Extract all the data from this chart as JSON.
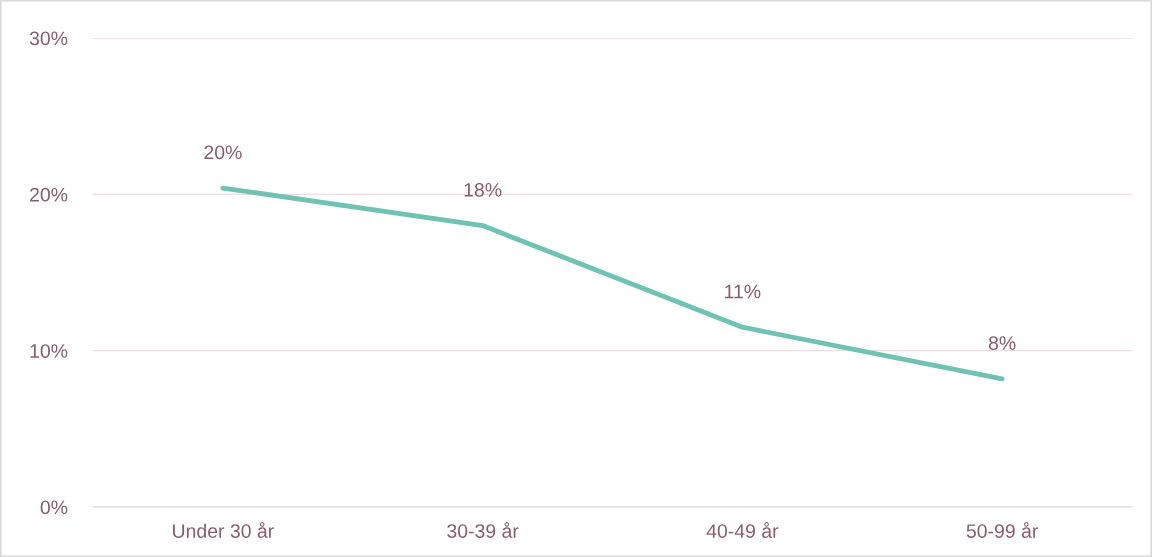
{
  "chart_data": {
    "type": "line",
    "categories": [
      "Under 30 år",
      "30-39 år",
      "40-49 år",
      "50-99 år"
    ],
    "series": [
      {
        "color": "#6fc3b2",
        "values": [
          20.4,
          18.0,
          11.5,
          8.2
        ],
        "value_labels": [
          "20%",
          "18%",
          "11%",
          "8%"
        ]
      }
    ],
    "ylim": [
      0,
      30
    ],
    "yticks": [
      {
        "value": 0,
        "label": "0%"
      },
      {
        "value": 10,
        "label": "10%"
      },
      {
        "value": 20,
        "label": "20%"
      },
      {
        "value": 30,
        "label": "30%"
      }
    ],
    "grid": "y",
    "legend": false,
    "marker": "none",
    "line_style": "solid"
  }
}
